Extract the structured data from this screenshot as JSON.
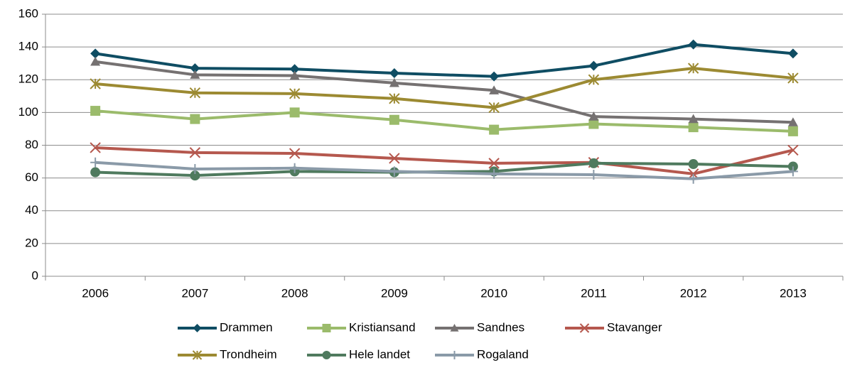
{
  "chart_data": {
    "type": "line",
    "categories": [
      "2006",
      "2007",
      "2008",
      "2009",
      "2010",
      "2011",
      "2012",
      "2013"
    ],
    "ylim": [
      0,
      160
    ],
    "yticks": [
      0,
      20,
      40,
      60,
      80,
      100,
      120,
      140,
      160
    ],
    "grid": true,
    "legend": "bottom",
    "series": [
      {
        "name": "Drammen",
        "color": "#0f4d63",
        "marker": "diamond",
        "values": [
          136,
          127,
          126.5,
          124,
          122,
          128.5,
          141.5,
          136
        ]
      },
      {
        "name": "Kristiansand",
        "color": "#9bbb6b",
        "marker": "square",
        "values": [
          101,
          96,
          100,
          95.5,
          89.5,
          93,
          91,
          88.5
        ]
      },
      {
        "name": "Sandnes",
        "color": "#757171",
        "marker": "triangle",
        "values": [
          131,
          123,
          122.5,
          118,
          113.5,
          97.5,
          96,
          94
        ]
      },
      {
        "name": "Stavanger",
        "color": "#b5584e",
        "marker": "x",
        "values": [
          78.5,
          75.5,
          75,
          72,
          69,
          69.5,
          62.5,
          77
        ]
      },
      {
        "name": "Trondheim",
        "color": "#9c8a32",
        "marker": "star",
        "values": [
          117.5,
          112,
          111.5,
          108.5,
          103,
          120,
          127,
          121
        ]
      },
      {
        "name": "Hele landet",
        "color": "#4f7a5e",
        "marker": "circle",
        "values": [
          63.5,
          61.5,
          64,
          63.5,
          64,
          69,
          68.5,
          67
        ]
      },
      {
        "name": "Rogaland",
        "color": "#8a9aa8",
        "marker": "plus",
        "values": [
          69.5,
          65.5,
          66,
          64,
          62.5,
          62,
          59.5,
          64
        ]
      }
    ]
  }
}
